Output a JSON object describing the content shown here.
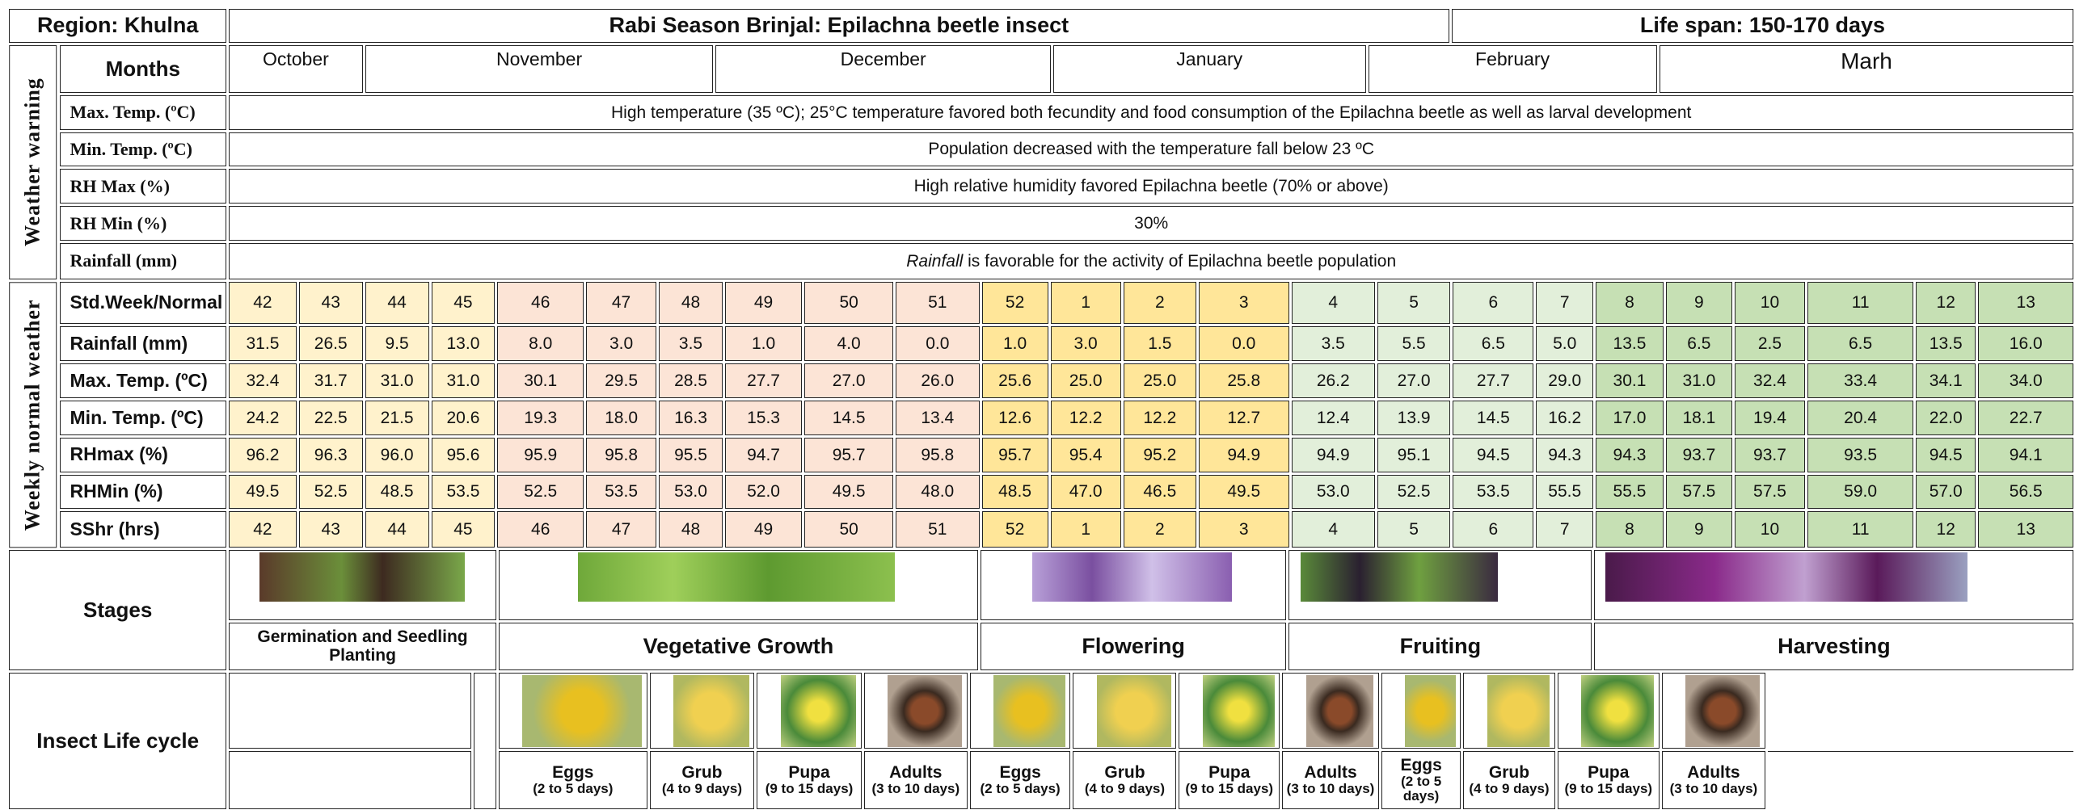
{
  "header": {
    "region": "Region: Khulna",
    "title": "Rabi Season Brinjal: Epilachna beetle insect",
    "life_span": "Life span: 150-170 days"
  },
  "months": {
    "label": "Months",
    "names": [
      "October",
      "November",
      "December",
      "January",
      "February",
      "Marh"
    ]
  },
  "weather_warning": {
    "label": "Weather warning",
    "rows": [
      {
        "parameter": "Max. Temp. (ºC)",
        "note": "High temperature (35 ºC); 25°C temperature favored both fecundity and food consumption of the Epilachna beetle as well as larval development"
      },
      {
        "parameter": "Min. Temp. (ºC)",
        "note": "Population decreased with the temperature fall below 23 ºC"
      },
      {
        "parameter": "RH Max (%)",
        "note": "High relative humidity favored Epilachna beetle (70% or above)"
      },
      {
        "parameter": "RH Min (%)",
        "note": "30%"
      },
      {
        "parameter": "Rainfall (mm)",
        "note_emphasis": "Rainfall",
        "note": " is favorable for the activity of Epilachna beetle population"
      }
    ]
  },
  "weekly_normal": {
    "label": "Weekly normal weather",
    "rows": [
      {
        "parameter": "Std.Week/Normal",
        "values": [
          42,
          43,
          44,
          45,
          46,
          47,
          48,
          49,
          50,
          51,
          52,
          1,
          2,
          3,
          4,
          5,
          6,
          7,
          8,
          9,
          10,
          11,
          12,
          13
        ]
      },
      {
        "parameter": "Rainfall (mm)",
        "values": [
          "31.5",
          "26.5",
          "9.5",
          "13.0",
          "8.0",
          "3.0",
          "3.5",
          "1.0",
          "4.0",
          "0.0",
          "1.0",
          "3.0",
          "1.5",
          "0.0",
          "3.5",
          "5.5",
          "6.5",
          "5.0",
          "13.5",
          "6.5",
          "2.5",
          "6.5",
          "13.5",
          "16.0"
        ]
      },
      {
        "parameter": "Max. Temp. (ºC)",
        "values": [
          "32.4",
          "31.7",
          "31.0",
          "31.0",
          "30.1",
          "29.5",
          "28.5",
          "27.7",
          "27.0",
          "26.0",
          "25.6",
          "25.0",
          "25.0",
          "25.8",
          "26.2",
          "27.0",
          "27.7",
          "29.0",
          "30.1",
          "31.0",
          "32.4",
          "33.4",
          "34.1",
          "34.0"
        ]
      },
      {
        "parameter": "Min. Temp. (ºC)",
        "values": [
          "24.2",
          "22.5",
          "21.5",
          "20.6",
          "19.3",
          "18.0",
          "16.3",
          "15.3",
          "14.5",
          "13.4",
          "12.6",
          "12.2",
          "12.2",
          "12.7",
          "12.4",
          "13.9",
          "14.5",
          "16.2",
          "17.0",
          "18.1",
          "19.4",
          "20.4",
          "22.0",
          "22.7"
        ]
      },
      {
        "parameter": "RHmax (%)",
        "values": [
          "96.2",
          "96.3",
          "96.0",
          "95.6",
          "95.9",
          "95.8",
          "95.5",
          "94.7",
          "95.7",
          "95.8",
          "95.7",
          "95.4",
          "95.2",
          "94.9",
          "94.9",
          "95.1",
          "94.5",
          "94.3",
          "94.3",
          "93.7",
          "93.7",
          "93.5",
          "94.5",
          "94.1"
        ]
      },
      {
        "parameter": "RHMin (%)",
        "values": [
          "49.5",
          "52.5",
          "48.5",
          "53.5",
          "52.5",
          "53.5",
          "53.0",
          "52.0",
          "49.5",
          "48.0",
          "48.5",
          "47.0",
          "46.5",
          "49.5",
          "53.0",
          "52.5",
          "53.5",
          "55.5",
          "55.5",
          "57.5",
          "57.5",
          "59.0",
          "57.0",
          "56.5"
        ]
      },
      {
        "parameter": "SShr (hrs)",
        "values": [
          42,
          43,
          44,
          45,
          46,
          47,
          48,
          49,
          50,
          51,
          52,
          1,
          2,
          3,
          4,
          5,
          6,
          7,
          8,
          9,
          10,
          11,
          12,
          13
        ]
      }
    ]
  },
  "stages": {
    "label": "Stages",
    "names": [
      "Germination and Seedling Planting",
      "Vegetative Growth",
      "Flowering",
      "Fruiting",
      "Harvesting"
    ]
  },
  "insect_life_cycle": {
    "label": "Insect Life cycle",
    "stages": [
      {
        "name": "Eggs",
        "duration": "(2 to 5 days)"
      },
      {
        "name": "Grub",
        "duration": "(4 to 9 days)"
      },
      {
        "name": "Pupa",
        "duration": "(9 to 15 days)"
      },
      {
        "name": "Adults",
        "duration": "(3 to 10 days)"
      },
      {
        "name": "Eggs",
        "duration": "(2 to 5 days)"
      },
      {
        "name": "Grub",
        "duration": "(4 to 9 days)"
      },
      {
        "name": "Pupa",
        "duration": "(9 to 15 days)"
      },
      {
        "name": "Adults",
        "duration": "(3 to 10 days)"
      },
      {
        "name": "Eggs",
        "duration": "(2 to 5 days)"
      },
      {
        "name": "Grub",
        "duration": "(4 to 9 days)"
      },
      {
        "name": "Pupa",
        "duration": "(9 to 15 days)"
      },
      {
        "name": "Adults",
        "duration": "(3 to 10 days)"
      }
    ]
  }
}
